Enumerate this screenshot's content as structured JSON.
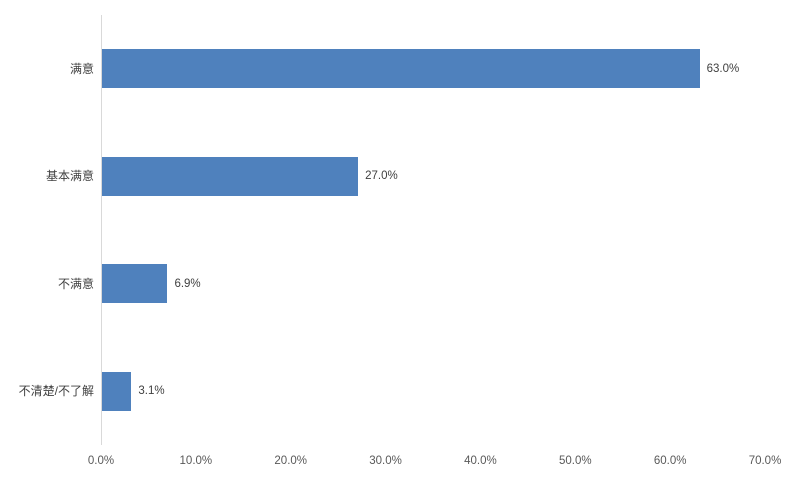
{
  "chart_data": {
    "type": "bar",
    "orientation": "horizontal",
    "title": "",
    "xlabel": "",
    "ylabel": "",
    "categories": [
      "满意",
      "基本满意",
      "不满意",
      "不清楚/不了解"
    ],
    "values": [
      63.0,
      27.0,
      6.9,
      3.1
    ],
    "data_labels": [
      "63.0%",
      "27.0%",
      "6.9%",
      "3.1%"
    ],
    "x_ticks": [
      "0.0%",
      "10.0%",
      "20.0%",
      "30.0%",
      "40.0%",
      "50.0%",
      "60.0%",
      "70.0%"
    ],
    "x_tick_values": [
      0,
      10,
      20,
      30,
      40,
      50,
      60,
      70
    ],
    "xlim": [
      0,
      70
    ],
    "grid": false,
    "legend": false,
    "colors": {
      "bar": "#4F81BD",
      "axis_line": "#D9D9D9",
      "category_label": "#404040",
      "data_label": "#404040",
      "tick_label": "#595959"
    }
  }
}
